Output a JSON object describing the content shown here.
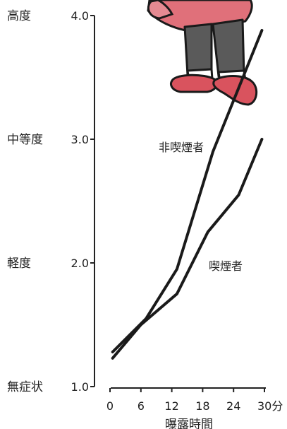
{
  "chart_data": {
    "type": "line",
    "xlabel": "曝露時間",
    "x_ticks": [
      "0",
      "6",
      "12",
      "18",
      "24",
      "30分"
    ],
    "x_tick_values": [
      0,
      6,
      12,
      18,
      24,
      30
    ],
    "xlim": [
      0,
      30
    ],
    "y_ticks": [
      "1.0",
      "2.0",
      "3.0",
      "4.0"
    ],
    "y_tick_values": [
      1.0,
      2.0,
      3.0,
      4.0
    ],
    "y_categories": [
      "無症状",
      "軽度",
      "中等度",
      "高度"
    ],
    "ylim": [
      1.0,
      4.0
    ],
    "grid": false,
    "series": [
      {
        "name": "非喫煙者",
        "x": [
          0.5,
          7,
          13,
          20,
          29.5
        ],
        "y": [
          1.28,
          1.55,
          1.95,
          2.9,
          3.88
        ]
      },
      {
        "name": "喫煙者",
        "x": [
          0.5,
          6,
          13,
          19,
          25,
          29.5
        ],
        "y": [
          1.23,
          1.5,
          1.75,
          2.25,
          2.55,
          3.0
        ]
      }
    ],
    "colors": {
      "line": "#1a1a1a",
      "shoe": "#d9535e",
      "skirt": "#e0707a",
      "pants": "#5a5a5a"
    }
  }
}
